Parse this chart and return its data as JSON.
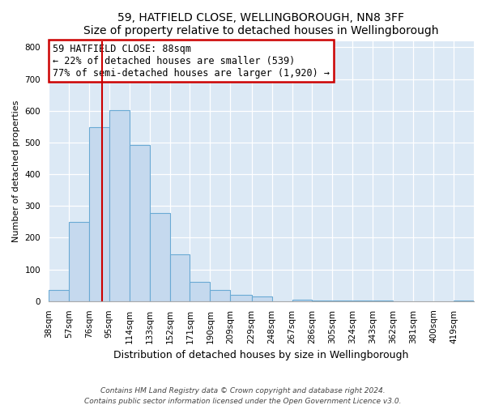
{
  "title": "59, HATFIELD CLOSE, WELLINGBOROUGH, NN8 3FF",
  "subtitle": "Size of property relative to detached houses in Wellingborough",
  "xlabel": "Distribution of detached houses by size in Wellingborough",
  "ylabel": "Number of detached properties",
  "bin_labels": [
    "38sqm",
    "57sqm",
    "76sqm",
    "95sqm",
    "114sqm",
    "133sqm",
    "152sqm",
    "171sqm",
    "190sqm",
    "209sqm",
    "229sqm",
    "248sqm",
    "267sqm",
    "286sqm",
    "305sqm",
    "324sqm",
    "343sqm",
    "362sqm",
    "381sqm",
    "400sqm",
    "419sqm"
  ],
  "bar_heights": [
    35,
    250,
    548,
    603,
    493,
    278,
    148,
    60,
    35,
    20,
    15,
    0,
    5,
    2,
    1,
    1,
    1,
    0,
    0,
    0,
    2
  ],
  "bar_color": "#c5d9ee",
  "bar_edgecolor": "#6aaad4",
  "vline_x": 88,
  "bin_edges": [
    38,
    57,
    76,
    95,
    114,
    133,
    152,
    171,
    190,
    209,
    229,
    248,
    267,
    286,
    305,
    324,
    343,
    362,
    381,
    400,
    419,
    438
  ],
  "annotation_title": "59 HATFIELD CLOSE: 88sqm",
  "annotation_line1": "← 22% of detached houses are smaller (539)",
  "annotation_line2": "77% of semi-detached houses are larger (1,920) →",
  "annotation_box_color": "#ffffff",
  "annotation_box_edgecolor": "#cc0000",
  "vline_color": "#cc0000",
  "footnote1": "Contains HM Land Registry data © Crown copyright and database right 2024.",
  "footnote2": "Contains public sector information licensed under the Open Government Licence v3.0.",
  "ylim": [
    0,
    820
  ],
  "xlim_left": 38,
  "xlim_right": 438,
  "grid_color": "#ffffff",
  "background_color": "#dce9f5",
  "plot_background": "#ffffff",
  "title_fontsize": 10,
  "subtitle_fontsize": 9,
  "ylabel_fontsize": 8,
  "xlabel_fontsize": 9,
  "tick_fontsize": 7.5,
  "annot_fontsize": 8.5,
  "footnote_fontsize": 6.5
}
